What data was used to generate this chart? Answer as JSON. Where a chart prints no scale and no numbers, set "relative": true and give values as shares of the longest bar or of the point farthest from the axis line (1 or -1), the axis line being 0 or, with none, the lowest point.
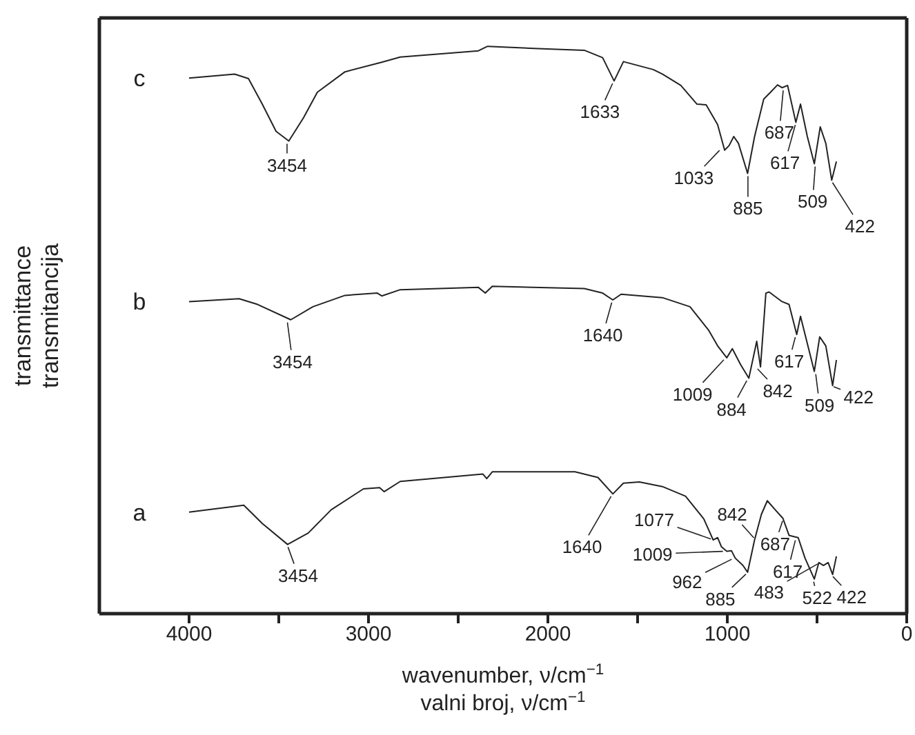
{
  "chart_data": {
    "type": "line",
    "relative": true,
    "marker": "none",
    "tick_labels": "x",
    "xlabel": "wavenumber, ν/cm$^{−1}$\nvalni broj, ν/cm$^{−1}$",
    "ylabel": "transmittance\ntransmitancija",
    "xlim": [
      4500,
      0
    ],
    "xticks": [
      4000,
      {
        "value": 3500,
        "label": null
      },
      3000,
      {
        "value": 2500,
        "label": null
      },
      2000,
      {
        "value": 1500,
        "label": null
      },
      1000,
      {
        "value": 500,
        "label": null
      },
      0
    ],
    "series": [
      {
        "name": "c",
        "color": "#222222",
        "x": [
          4000,
          3746,
          3669,
          3592,
          3515,
          3444,
          3362,
          3285,
          3131,
          2926,
          2823,
          2387,
          2362,
          2336,
          2054,
          1797,
          1695,
          1631,
          1579,
          1413,
          1362,
          1259,
          1169,
          1118,
          1054,
          1015,
          990,
          964,
          938,
          887,
          848,
          797,
          759,
          720,
          695,
          664,
          618,
          592,
          554,
          515,
          482,
          451,
          418,
          392
        ],
        "values": [
          0.944,
          0.951,
          0.943,
          0.898,
          0.85,
          0.833,
          0.874,
          0.919,
          0.955,
          0.972,
          0.981,
          0.992,
          0.996,
          1,
          0.996,
          0.993,
          0.98,
          0.939,
          0.973,
          0.959,
          0.951,
          0.931,
          0.898,
          0.897,
          0.862,
          0.817,
          0.825,
          0.841,
          0.829,
          0.776,
          0.841,
          0.907,
          0.919,
          0.932,
          0.927,
          0.931,
          0.866,
          0.898,
          0.841,
          0.793,
          0.858,
          0.829,
          0.764,
          0.797
        ]
      },
      {
        "name": "b",
        "color": "#222222",
        "x": [
          4000,
          3721,
          3618,
          3433,
          3310,
          3131,
          2951,
          2926,
          2823,
          2387,
          2349,
          2310,
          1797,
          1695,
          1638,
          1592,
          1362,
          1208,
          1105,
          1054,
          1003,
          972,
          926,
          880,
          836,
          815,
          785,
          767,
          695,
          656,
          613,
          592,
          515,
          485,
          451,
          413,
          392
        ],
        "values": [
          0.55,
          0.555,
          0.545,
          0.518,
          0.541,
          0.561,
          0.565,
          0.56,
          0.571,
          0.575,
          0.565,
          0.577,
          0.573,
          0.565,
          0.553,
          0.563,
          0.557,
          0.541,
          0.5,
          0.472,
          0.451,
          0.467,
          0.439,
          0.415,
          0.48,
          0.435,
          0.565,
          0.567,
          0.55,
          0.545,
          0.492,
          0.524,
          0.427,
          0.488,
          0.472,
          0.402,
          0.447
        ]
      },
      {
        "name": "a",
        "color": "#222222",
        "x": [
          4000,
          3695,
          3592,
          3451,
          3336,
          3208,
          3028,
          2938,
          2913,
          2823,
          2362,
          2341,
          2310,
          1849,
          1721,
          1638,
          1579,
          1490,
          1362,
          1233,
          1131,
          1079,
          1054,
          1033,
          1003,
          977,
          956,
          913,
          887,
          848,
          810,
          777,
          733,
          690,
          656,
          605,
          567,
          515,
          490,
          464,
          438,
          413,
          392
        ],
        "values": [
          0.179,
          0.191,
          0.159,
          0.122,
          0.142,
          0.183,
          0.22,
          0.222,
          0.215,
          0.233,
          0.246,
          0.238,
          0.25,
          0.25,
          0.24,
          0.211,
          0.23,
          0.232,
          0.224,
          0.207,
          0.167,
          0.13,
          0.134,
          0.118,
          0.11,
          0.111,
          0.098,
          0.085,
          0.073,
          0.13,
          0.175,
          0.199,
          0.183,
          0.168,
          0.138,
          0.134,
          0.098,
          0.061,
          0.09,
          0.085,
          0.09,
          0.069,
          0.101
        ]
      }
    ],
    "annotations": [
      {
        "text": "3454",
        "x": 3454,
        "y": 0.833
      },
      {
        "text": "1633",
        "x": 1633,
        "y": 0.939
      },
      {
        "text": "1033",
        "x": 1033,
        "y": 0.82
      },
      {
        "text": "885",
        "x": 885,
        "y": 0.776
      },
      {
        "text": "687",
        "x": 687,
        "y": 0.927
      },
      {
        "text": "617",
        "x": 617,
        "y": 0.866
      },
      {
        "text": "509",
        "x": 509,
        "y": 0.793
      },
      {
        "text": "422",
        "x": 422,
        "y": 0.764
      },
      {
        "text": "3454",
        "x": 3454,
        "y": 0.518
      },
      {
        "text": "1640",
        "x": 1640,
        "y": 0.553
      },
      {
        "text": "1009",
        "x": 1009,
        "y": 0.451
      },
      {
        "text": "884",
        "x": 884,
        "y": 0.415
      },
      {
        "text": "842",
        "x": 842,
        "y": 0.435
      },
      {
        "text": "617",
        "x": 617,
        "y": 0.492
      },
      {
        "text": "509",
        "x": 509,
        "y": 0.427
      },
      {
        "text": "422",
        "x": 422,
        "y": 0.402
      },
      {
        "text": "3454",
        "x": 3454,
        "y": 0.122
      },
      {
        "text": "1640",
        "x": 1640,
        "y": 0.211
      },
      {
        "text": "1077",
        "x": 1077,
        "y": 0.13
      },
      {
        "text": "1009",
        "x": 1009,
        "y": 0.11
      },
      {
        "text": "962",
        "x": 962,
        "y": 0.098
      },
      {
        "text": "885",
        "x": 885,
        "y": 0.073
      },
      {
        "text": "842",
        "x": 842,
        "y": 0.13
      },
      {
        "text": "687",
        "x": 687,
        "y": 0.168
      },
      {
        "text": "617",
        "x": 617,
        "y": 0.134
      },
      {
        "text": "483",
        "x": 483,
        "y": 0.09
      },
      {
        "text": "522",
        "x": 522,
        "y": 0.061
      },
      {
        "text": "422",
        "x": 422,
        "y": 0.069
      }
    ]
  }
}
